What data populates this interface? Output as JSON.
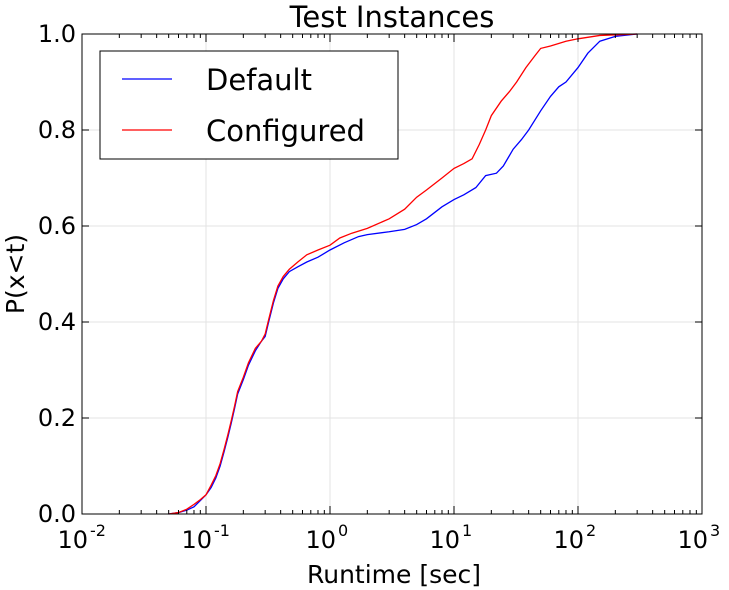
{
  "chart_data": {
    "type": "line",
    "title": "Test Instances",
    "xlabel": "Runtime [sec]",
    "ylabel": "P(x<t)",
    "xscale": "log",
    "xlim": [
      0.01,
      1000
    ],
    "ylim": [
      0.0,
      1.0
    ],
    "xticks": [
      {
        "value": 0.01,
        "base": "10",
        "exp": "-2"
      },
      {
        "value": 0.1,
        "base": "10",
        "exp": "-1"
      },
      {
        "value": 1,
        "base": "10",
        "exp": "0"
      },
      {
        "value": 10,
        "base": "10",
        "exp": "1"
      },
      {
        "value": 100,
        "base": "10",
        "exp": "2"
      },
      {
        "value": 1000,
        "base": "10",
        "exp": "3"
      }
    ],
    "yticks": [
      {
        "value": 0.0,
        "label": "0.0"
      },
      {
        "value": 0.2,
        "label": "0.2"
      },
      {
        "value": 0.4,
        "label": "0.4"
      },
      {
        "value": 0.6,
        "label": "0.6"
      },
      {
        "value": 0.8,
        "label": "0.8"
      },
      {
        "value": 1.0,
        "label": "1.0"
      }
    ],
    "grid": true,
    "legend_position": "top-left",
    "series": [
      {
        "name": "Default",
        "color": "#0000ff",
        "points": [
          [
            0.05,
            0.0
          ],
          [
            0.06,
            0.003
          ],
          [
            0.07,
            0.008
          ],
          [
            0.08,
            0.015
          ],
          [
            0.09,
            0.028
          ],
          [
            0.1,
            0.04
          ],
          [
            0.11,
            0.055
          ],
          [
            0.12,
            0.075
          ],
          [
            0.13,
            0.1
          ],
          [
            0.14,
            0.13
          ],
          [
            0.15,
            0.16
          ],
          [
            0.16,
            0.19
          ],
          [
            0.17,
            0.22
          ],
          [
            0.18,
            0.25
          ],
          [
            0.2,
            0.28
          ],
          [
            0.22,
            0.31
          ],
          [
            0.25,
            0.34
          ],
          [
            0.28,
            0.36
          ],
          [
            0.3,
            0.37
          ],
          [
            0.32,
            0.4
          ],
          [
            0.35,
            0.44
          ],
          [
            0.38,
            0.47
          ],
          [
            0.42,
            0.49
          ],
          [
            0.47,
            0.505
          ],
          [
            0.55,
            0.515
          ],
          [
            0.65,
            0.525
          ],
          [
            0.8,
            0.535
          ],
          [
            1.0,
            0.55
          ],
          [
            1.3,
            0.565
          ],
          [
            1.7,
            0.578
          ],
          [
            2.0,
            0.582
          ],
          [
            3.0,
            0.588
          ],
          [
            4.0,
            0.593
          ],
          [
            5.0,
            0.603
          ],
          [
            6.0,
            0.615
          ],
          [
            8.0,
            0.64
          ],
          [
            10.0,
            0.655
          ],
          [
            12.0,
            0.665
          ],
          [
            15.0,
            0.68
          ],
          [
            18.0,
            0.705
          ],
          [
            22.0,
            0.71
          ],
          [
            25.0,
            0.725
          ],
          [
            30.0,
            0.76
          ],
          [
            35.0,
            0.78
          ],
          [
            40.0,
            0.8
          ],
          [
            50.0,
            0.84
          ],
          [
            60.0,
            0.87
          ],
          [
            70.0,
            0.89
          ],
          [
            80.0,
            0.9
          ],
          [
            100.0,
            0.93
          ],
          [
            120.0,
            0.96
          ],
          [
            150.0,
            0.985
          ],
          [
            200.0,
            0.995
          ],
          [
            300.0,
            1.0
          ]
        ]
      },
      {
        "name": "Configured",
        "color": "#ff0000",
        "points": [
          [
            0.05,
            0.0
          ],
          [
            0.06,
            0.003
          ],
          [
            0.07,
            0.01
          ],
          [
            0.08,
            0.02
          ],
          [
            0.09,
            0.03
          ],
          [
            0.1,
            0.04
          ],
          [
            0.11,
            0.06
          ],
          [
            0.12,
            0.08
          ],
          [
            0.13,
            0.105
          ],
          [
            0.14,
            0.135
          ],
          [
            0.15,
            0.165
          ],
          [
            0.16,
            0.195
          ],
          [
            0.17,
            0.225
          ],
          [
            0.18,
            0.255
          ],
          [
            0.2,
            0.285
          ],
          [
            0.22,
            0.315
          ],
          [
            0.25,
            0.345
          ],
          [
            0.28,
            0.36
          ],
          [
            0.3,
            0.375
          ],
          [
            0.32,
            0.405
          ],
          [
            0.35,
            0.445
          ],
          [
            0.38,
            0.475
          ],
          [
            0.42,
            0.495
          ],
          [
            0.47,
            0.51
          ],
          [
            0.55,
            0.525
          ],
          [
            0.65,
            0.54
          ],
          [
            0.8,
            0.55
          ],
          [
            1.0,
            0.56
          ],
          [
            1.2,
            0.575
          ],
          [
            1.5,
            0.585
          ],
          [
            2.0,
            0.595
          ],
          [
            3.0,
            0.615
          ],
          [
            4.0,
            0.635
          ],
          [
            5.0,
            0.66
          ],
          [
            6.0,
            0.675
          ],
          [
            8.0,
            0.7
          ],
          [
            10.0,
            0.72
          ],
          [
            12.0,
            0.73
          ],
          [
            14.0,
            0.74
          ],
          [
            16.0,
            0.77
          ],
          [
            18.0,
            0.8
          ],
          [
            20.0,
            0.83
          ],
          [
            24.0,
            0.86
          ],
          [
            28.0,
            0.88
          ],
          [
            32.0,
            0.9
          ],
          [
            38.0,
            0.93
          ],
          [
            45.0,
            0.955
          ],
          [
            50.0,
            0.97
          ],
          [
            60.0,
            0.975
          ],
          [
            80.0,
            0.985
          ],
          [
            100.0,
            0.99
          ],
          [
            150.0,
            0.997
          ],
          [
            300.0,
            1.0
          ]
        ]
      }
    ]
  }
}
